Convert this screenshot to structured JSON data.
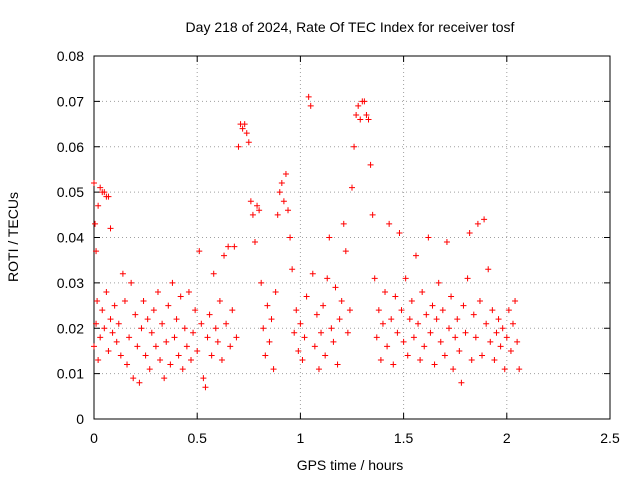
{
  "chart_data": {
    "type": "scatter",
    "title": "Day 218 of 2024, Rate Of TEC Index for receiver tosf",
    "xlabel": "GPS time / hours",
    "ylabel": "ROTI / TECUs",
    "xlim": [
      0,
      2.5
    ],
    "ylim": [
      0,
      0.08
    ],
    "x_ticks": [
      "0",
      "0.5",
      "1",
      "1.5",
      "2",
      "2.5"
    ],
    "y_ticks": [
      "0",
      "0.01",
      "0.02",
      "0.03",
      "0.04",
      "0.05",
      "0.06",
      "0.07",
      "0.08"
    ],
    "x_tick_values": [
      0,
      0.5,
      1,
      1.5,
      2,
      2.5
    ],
    "y_tick_values": [
      0,
      0.01,
      0.02,
      0.03,
      0.04,
      0.05,
      0.06,
      0.07,
      0.08
    ],
    "grid": true,
    "marker": "+",
    "marker_color": "#ff0000",
    "series": [
      {
        "name": "ROTI",
        "points": [
          [
            0.0,
            0.052
          ],
          [
            0.005,
            0.043
          ],
          [
            0.01,
            0.037
          ],
          [
            0.015,
            0.026
          ],
          [
            0.02,
            0.047
          ],
          [
            0.03,
            0.051
          ],
          [
            0.04,
            0.05
          ],
          [
            0.05,
            0.05
          ],
          [
            0.06,
            0.049
          ],
          [
            0.07,
            0.049
          ],
          [
            0.08,
            0.042
          ],
          [
            0.0,
            0.016
          ],
          [
            0.01,
            0.021
          ],
          [
            0.02,
            0.013
          ],
          [
            0.03,
            0.018
          ],
          [
            0.04,
            0.024
          ],
          [
            0.05,
            0.02
          ],
          [
            0.06,
            0.028
          ],
          [
            0.07,
            0.015
          ],
          [
            0.08,
            0.022
          ],
          [
            0.09,
            0.019
          ],
          [
            0.1,
            0.025
          ],
          [
            0.11,
            0.017
          ],
          [
            0.12,
            0.021
          ],
          [
            0.13,
            0.014
          ],
          [
            0.14,
            0.032
          ],
          [
            0.15,
            0.026
          ],
          [
            0.16,
            0.012
          ],
          [
            0.17,
            0.018
          ],
          [
            0.18,
            0.03
          ],
          [
            0.19,
            0.009
          ],
          [
            0.2,
            0.023
          ],
          [
            0.21,
            0.016
          ],
          [
            0.22,
            0.008
          ],
          [
            0.23,
            0.02
          ],
          [
            0.24,
            0.026
          ],
          [
            0.25,
            0.014
          ],
          [
            0.26,
            0.022
          ],
          [
            0.27,
            0.011
          ],
          [
            0.28,
            0.019
          ],
          [
            0.29,
            0.024
          ],
          [
            0.3,
            0.016
          ],
          [
            0.31,
            0.028
          ],
          [
            0.32,
            0.013
          ],
          [
            0.33,
            0.021
          ],
          [
            0.34,
            0.009
          ],
          [
            0.35,
            0.017
          ],
          [
            0.36,
            0.025
          ],
          [
            0.37,
            0.012
          ],
          [
            0.38,
            0.03
          ],
          [
            0.39,
            0.018
          ],
          [
            0.4,
            0.022
          ],
          [
            0.41,
            0.014
          ],
          [
            0.42,
            0.027
          ],
          [
            0.43,
            0.011
          ],
          [
            0.44,
            0.02
          ],
          [
            0.45,
            0.016
          ],
          [
            0.46,
            0.028
          ],
          [
            0.47,
            0.013
          ],
          [
            0.48,
            0.019
          ],
          [
            0.49,
            0.024
          ],
          [
            0.5,
            0.015
          ],
          [
            0.51,
            0.037
          ],
          [
            0.52,
            0.021
          ],
          [
            0.53,
            0.009
          ],
          [
            0.54,
            0.007
          ],
          [
            0.55,
            0.018
          ],
          [
            0.56,
            0.023
          ],
          [
            0.57,
            0.014
          ],
          [
            0.58,
            0.032
          ],
          [
            0.59,
            0.02
          ],
          [
            0.6,
            0.017
          ],
          [
            0.61,
            0.026
          ],
          [
            0.62,
            0.013
          ],
          [
            0.63,
            0.036
          ],
          [
            0.64,
            0.021
          ],
          [
            0.65,
            0.038
          ],
          [
            0.66,
            0.016
          ],
          [
            0.67,
            0.024
          ],
          [
            0.68,
            0.038
          ],
          [
            0.69,
            0.018
          ],
          [
            0.7,
            0.06
          ],
          [
            0.71,
            0.065
          ],
          [
            0.72,
            0.064
          ],
          [
            0.73,
            0.065
          ],
          [
            0.74,
            0.063
          ],
          [
            0.75,
            0.061
          ],
          [
            0.76,
            0.048
          ],
          [
            0.77,
            0.045
          ],
          [
            0.78,
            0.039
          ],
          [
            0.79,
            0.047
          ],
          [
            0.8,
            0.046
          ],
          [
            0.81,
            0.03
          ],
          [
            0.82,
            0.02
          ],
          [
            0.83,
            0.014
          ],
          [
            0.84,
            0.025
          ],
          [
            0.85,
            0.017
          ],
          [
            0.86,
            0.022
          ],
          [
            0.87,
            0.011
          ],
          [
            0.88,
            0.028
          ],
          [
            0.89,
            0.045
          ],
          [
            0.9,
            0.05
          ],
          [
            0.91,
            0.052
          ],
          [
            0.92,
            0.048
          ],
          [
            0.93,
            0.054
          ],
          [
            0.94,
            0.046
          ],
          [
            0.95,
            0.04
          ],
          [
            0.96,
            0.033
          ],
          [
            0.97,
            0.019
          ],
          [
            0.98,
            0.024
          ],
          [
            0.99,
            0.015
          ],
          [
            1.0,
            0.021
          ],
          [
            1.01,
            0.013
          ],
          [
            1.02,
            0.018
          ],
          [
            1.03,
            0.027
          ],
          [
            1.04,
            0.071
          ],
          [
            1.05,
            0.069
          ],
          [
            1.06,
            0.032
          ],
          [
            1.07,
            0.016
          ],
          [
            1.08,
            0.023
          ],
          [
            1.09,
            0.011
          ],
          [
            1.1,
            0.019
          ],
          [
            1.11,
            0.025
          ],
          [
            1.12,
            0.014
          ],
          [
            1.13,
            0.031
          ],
          [
            1.14,
            0.04
          ],
          [
            1.15,
            0.02
          ],
          [
            1.16,
            0.017
          ],
          [
            1.17,
            0.029
          ],
          [
            1.18,
            0.012
          ],
          [
            1.19,
            0.022
          ],
          [
            1.2,
            0.026
          ],
          [
            1.21,
            0.043
          ],
          [
            1.22,
            0.037
          ],
          [
            1.23,
            0.019
          ],
          [
            1.24,
            0.024
          ],
          [
            1.25,
            0.051
          ],
          [
            1.26,
            0.06
          ],
          [
            1.27,
            0.067
          ],
          [
            1.28,
            0.069
          ],
          [
            1.29,
            0.066
          ],
          [
            1.3,
            0.07
          ],
          [
            1.31,
            0.07
          ],
          [
            1.32,
            0.067
          ],
          [
            1.33,
            0.066
          ],
          [
            1.34,
            0.056
          ],
          [
            1.35,
            0.045
          ],
          [
            1.36,
            0.031
          ],
          [
            1.37,
            0.018
          ],
          [
            1.38,
            0.024
          ],
          [
            1.39,
            0.013
          ],
          [
            1.4,
            0.021
          ],
          [
            1.41,
            0.028
          ],
          [
            1.42,
            0.016
          ],
          [
            1.43,
            0.043
          ],
          [
            1.44,
            0.022
          ],
          [
            1.45,
            0.012
          ],
          [
            1.46,
            0.027
          ],
          [
            1.47,
            0.019
          ],
          [
            1.48,
            0.041
          ],
          [
            1.49,
            0.024
          ],
          [
            1.5,
            0.017
          ],
          [
            1.51,
            0.031
          ],
          [
            1.52,
            0.014
          ],
          [
            1.53,
            0.022
          ],
          [
            1.54,
            0.026
          ],
          [
            1.55,
            0.018
          ],
          [
            1.56,
            0.036
          ],
          [
            1.57,
            0.021
          ],
          [
            1.58,
            0.013
          ],
          [
            1.59,
            0.028
          ],
          [
            1.6,
            0.016
          ],
          [
            1.61,
            0.023
          ],
          [
            1.62,
            0.04
          ],
          [
            1.63,
            0.019
          ],
          [
            1.64,
            0.025
          ],
          [
            1.65,
            0.012
          ],
          [
            1.66,
            0.022
          ],
          [
            1.67,
            0.03
          ],
          [
            1.68,
            0.017
          ],
          [
            1.69,
            0.024
          ],
          [
            1.7,
            0.014
          ],
          [
            1.71,
            0.039
          ],
          [
            1.72,
            0.02
          ],
          [
            1.73,
            0.027
          ],
          [
            1.74,
            0.011
          ],
          [
            1.75,
            0.018
          ],
          [
            1.76,
            0.022
          ],
          [
            1.77,
            0.015
          ],
          [
            1.78,
            0.008
          ],
          [
            1.79,
            0.025
          ],
          [
            1.8,
            0.019
          ],
          [
            1.81,
            0.031
          ],
          [
            1.82,
            0.041
          ],
          [
            1.83,
            0.013
          ],
          [
            1.84,
            0.023
          ],
          [
            1.85,
            0.018
          ],
          [
            1.86,
            0.043
          ],
          [
            1.87,
            0.026
          ],
          [
            1.88,
            0.014
          ],
          [
            1.89,
            0.044
          ],
          [
            1.9,
            0.021
          ],
          [
            1.91,
            0.033
          ],
          [
            1.92,
            0.017
          ],
          [
            1.93,
            0.024
          ],
          [
            1.94,
            0.013
          ],
          [
            1.95,
            0.019
          ],
          [
            1.96,
            0.022
          ],
          [
            1.97,
            0.016
          ],
          [
            1.98,
            0.02
          ],
          [
            1.99,
            0.011
          ],
          [
            2.0,
            0.018
          ],
          [
            2.01,
            0.024
          ],
          [
            2.02,
            0.015
          ],
          [
            2.03,
            0.021
          ],
          [
            2.04,
            0.026
          ],
          [
            2.05,
            0.017
          ],
          [
            2.06,
            0.011
          ]
        ]
      }
    ]
  }
}
